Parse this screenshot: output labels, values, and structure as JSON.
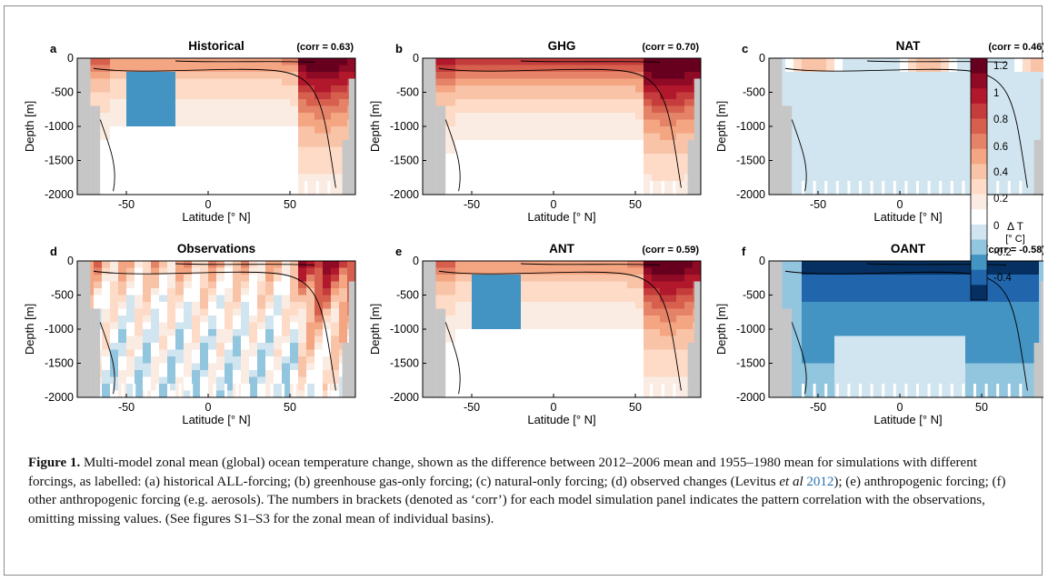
{
  "figure": {
    "panels": [
      {
        "letter": "a",
        "title": "Historical",
        "corr": "(corr = 0.63)"
      },
      {
        "letter": "b",
        "title": "GHG",
        "corr": "(corr = 0.70)"
      },
      {
        "letter": "c",
        "title": "NAT",
        "corr": "(corr = 0.46)"
      },
      {
        "letter": "d",
        "title": "Observations",
        "corr": ""
      },
      {
        "letter": "e",
        "title": "ANT",
        "corr": "(corr = 0.59)"
      },
      {
        "letter": "f",
        "title": "OANT",
        "corr": "(corr = -0.58)"
      }
    ],
    "ylabel": "Depth [m]",
    "xlabel": "Latitude [° N]",
    "yticks": [
      "0",
      "-500",
      "-1000",
      "-1500",
      "-2000"
    ],
    "xticks": [
      "-50",
      "0",
      "50"
    ],
    "colorbar": {
      "label_line1": "Δ T",
      "label_line2": "[° C]",
      "ticks": [
        "1.2",
        "1",
        "0.8",
        "0.6",
        "0.4",
        "0.2",
        "0",
        "-0.2",
        "-0.4"
      ],
      "colors": [
        "#67001f",
        "#8e0a25",
        "#b2182b",
        "#c43c3c",
        "#d6604d",
        "#e58368",
        "#f4a582",
        "#f8c3a6",
        "#fddbc7",
        "#fbece3",
        "#ffffff",
        "#d1e5f0",
        "#92c5de",
        "#4393c3",
        "#2166ac",
        "#053061"
      ]
    }
  },
  "caption": {
    "label": "Figure 1.",
    "part1": " Multi-model zonal mean (global) ocean temperature change, shown as the difference between 2012–2006 mean and 1955–1980 mean for simulations with different forcings, as labelled: (a) historical ALL-forcing; (b) greenhouse gas-only forcing; (c) natural-only forcing; (d) observed changes (Levitus ",
    "etal": "et al",
    "ref_year": " 2012",
    "part2": "); (e) anthropogenic forcing; (f) other anthropogenic forcing (e.g. aerosols). The numbers in brackets (denoted as ‘corr’) for each model simulation panel indicates the pattern correlation with the observations, omitting missing values. (See figures S1–S3 for the zonal mean of individual basins)."
  }
}
